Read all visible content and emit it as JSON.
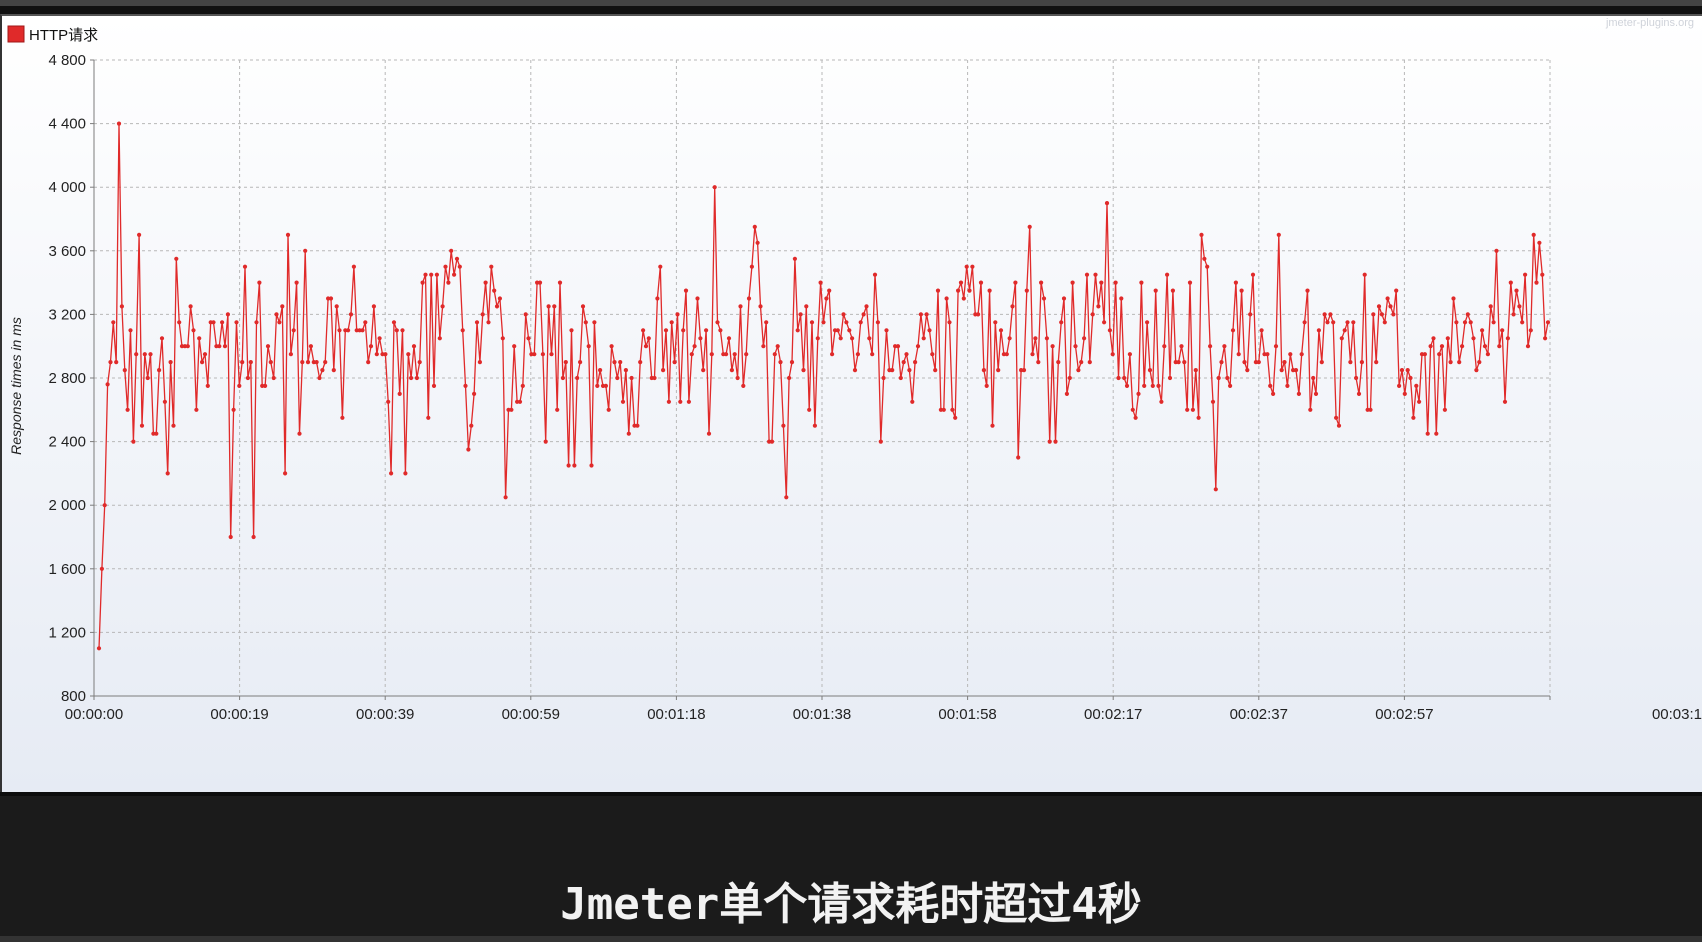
{
  "caption": "Jmeter单个请求耗时超过4秒",
  "watermark": "jmeter-plugins.org",
  "chart_data": {
    "type": "line",
    "title": "",
    "legend": {
      "label": "HTTP请求",
      "placement": "top-left"
    },
    "ylabel": "Response times in ms",
    "xlabel": "",
    "ylim": [
      800,
      4800
    ],
    "yticks": [
      "800",
      "1 200",
      "1 600",
      "2 000",
      "2 400",
      "2 800",
      "3 200",
      "3 600",
      "4 000",
      "4 400",
      "4 800"
    ],
    "ytick_values": [
      800,
      1200,
      1600,
      2000,
      2400,
      2800,
      3200,
      3600,
      4000,
      4400,
      4800
    ],
    "xticks": [
      "00:00:00",
      "00:00:19",
      "00:00:39",
      "00:00:59",
      "00:01:18",
      "00:01:38",
      "00:01:58",
      "00:02:17",
      "00:02:37",
      "00:02:57",
      "00:03:1"
    ],
    "grid": true,
    "color": "#e02a2a",
    "series": [
      {
        "name": "HTTP请求",
        "y": [
          1100,
          1600,
          2000,
          2760,
          2900,
          3150,
          2900,
          4400,
          3250,
          2850,
          2600,
          3100,
          2400,
          2950,
          3700,
          2500,
          2950,
          2800,
          2950,
          2450,
          2450,
          2850,
          3050,
          2650,
          2200,
          2900,
          2500,
          3550,
          3150,
          3000,
          3000,
          3000,
          3250,
          3100,
          2600,
          3050,
          2900,
          2950,
          2750,
          3150,
          3150,
          3000,
          3000,
          3150,
          3000,
          3200,
          1800,
          2600,
          3150,
          2750,
          2900,
          3500,
          2800,
          2900,
          1800,
          3150,
          3400,
          2750,
          2750,
          3000,
          2900,
          2800,
          3200,
          3150,
          3250,
          2200,
          3700,
          2950,
          3100,
          3400,
          2450,
          2900,
          3600,
          2900,
          3000,
          2900,
          2900,
          2800,
          2850,
          2900,
          3300,
          3300,
          2850,
          3250,
          3100,
          2550,
          3100,
          3100,
          3200,
          3500,
          3100,
          3100,
          3100,
          3150,
          2900,
          3000,
          3250,
          2950,
          3050,
          2950,
          2950,
          2650,
          2200,
          3150,
          3100,
          2700,
          3100,
          2200,
          2950,
          2800,
          3000,
          2800,
          2900,
          3400,
          3450,
          2550,
          3450,
          2750,
          3450,
          3050,
          3250,
          3500,
          3400,
          3600,
          3450,
          3550,
          3500,
          3100,
          2750,
          2350,
          2500,
          2700,
          3150,
          2900,
          3200,
          3400,
          3150,
          3500,
          3350,
          3250,
          3300,
          3050,
          2050,
          2600,
          2600,
          3000,
          2650,
          2650,
          2750,
          3200,
          3050,
          2950,
          2950,
          3400,
          3400,
          2950,
          2400,
          3250,
          2950,
          3250,
          2600,
          3400,
          2800,
          2900,
          2250,
          3100,
          2250,
          2800,
          2900,
          3250,
          3150,
          3000,
          2250,
          3150,
          2750,
          2850,
          2750,
          2750,
          2600,
          3000,
          2900,
          2800,
          2900,
          2650,
          2850,
          2450,
          2800,
          2500,
          2500,
          2900,
          3100,
          3000,
          3050,
          2800,
          2800,
          3300,
          3500,
          2850,
          3100,
          2650,
          3150,
          2900,
          3200,
          2650,
          3100,
          3350,
          2650,
          2950,
          3000,
          3300,
          3050,
          2850,
          3100,
          2450,
          2950,
          4000,
          3150,
          3100,
          2950,
          2950,
          3050,
          2850,
          2950,
          2800,
          3250,
          2750,
          2950,
          3300,
          3500,
          3750,
          3650,
          3250,
          3000,
          3150,
          2400,
          2400,
          2950,
          3000,
          2900,
          2500,
          2050,
          2800,
          2900,
          3550,
          3100,
          3200,
          2850,
          3250,
          2600,
          3150,
          2500,
          3050,
          3400,
          3150,
          3300,
          3350,
          2950,
          3100,
          3100,
          3050,
          3200,
          3150,
          3100,
          3050,
          2850,
          2950,
          3150,
          3200,
          3250,
          3050,
          2950,
          3450,
          3150,
          2400,
          2800,
          3100,
          2850,
          2850,
          3000,
          3000,
          2800,
          2900,
          2950,
          2850,
          2650,
          2900,
          3000,
          3200,
          3050,
          3200,
          3100,
          2950,
          2850,
          3350,
          2600,
          2600,
          3300,
          3150,
          2600,
          2550,
          3350,
          3400,
          3300,
          3500,
          3350,
          3500,
          3200,
          3200,
          3400,
          2850,
          2750,
          3350,
          2500,
          3150,
          2850,
          3100,
          2950,
          2950,
          3050,
          3250,
          3400,
          2300,
          2850,
          2850,
          3350,
          3750,
          2950,
          3050,
          2900,
          3400,
          3300,
          3050,
          2400,
          3000,
          2400,
          2900,
          3150,
          3300,
          2700,
          2800,
          3400,
          3000,
          2850,
          2900,
          3050,
          3450,
          2900,
          3200,
          3450,
          3250,
          3400,
          3150,
          3900,
          3100,
          2950,
          3400,
          2800,
          3300,
          2800,
          2750,
          2950,
          2600,
          2550,
          2700,
          3400,
          2750,
          3150,
          2850,
          2750,
          3350,
          2750,
          2650,
          3000,
          3450,
          2800,
          3350,
          2900,
          2900,
          3000,
          2900,
          2600,
          3400,
          2600,
          2850,
          2550,
          3700,
          3550,
          3500,
          3000,
          2650,
          2100,
          2800,
          2900,
          3000,
          2800,
          2750,
          3100,
          3400,
          2950,
          3350,
          2900,
          2850,
          3200,
          3450,
          2900,
          2900,
          3100,
          2950,
          2950,
          2750,
          2700,
          3000,
          3700,
          2850,
          2900,
          2750,
          2950,
          2850,
          2850,
          2700,
          2950,
          3150,
          3350,
          2600,
          2800,
          2700,
          3100,
          2900,
          3200,
          3150,
          3200,
          3150,
          2550,
          2500,
          3050,
          3100,
          3150,
          2900,
          3150,
          2800,
          2700,
          2900,
          3450,
          2600,
          2600,
          3200,
          2900,
          3250,
          3200,
          3150,
          3300,
          3250,
          3200,
          3350,
          2750,
          2850,
          2700,
          2850,
          2800,
          2550,
          2750,
          2650,
          2950,
          2950,
          2450,
          3000,
          3050,
          2450,
          2950,
          3000,
          2600,
          3050,
          2900,
          3300,
          3150,
          2900,
          3000,
          3150,
          3200,
          3150,
          3050,
          2850,
          2900,
          3100,
          3000,
          2950,
          3250,
          3150,
          3600,
          3000,
          3100,
          2650,
          3050,
          3400,
          3200,
          3350,
          3250,
          3150,
          3450,
          3000,
          3100,
          3700,
          3400,
          3650,
          3450,
          3050,
          3150
        ]
      }
    ]
  }
}
